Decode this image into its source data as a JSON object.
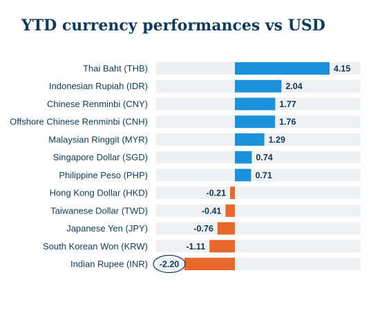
{
  "chart_data": {
    "type": "bar",
    "orientation": "horizontal",
    "title": "YTD currency performances vs USD",
    "xlabel": "",
    "ylabel": "",
    "categories": [
      "Thai Baht (THB)",
      "Indonesian Rupiah (IDR)",
      "Chinese Renminbi (CNY)",
      "Offshore Chinese Renminbi (CNH)",
      "Malaysian Ringgit (MYR)",
      "Singapore Dollar (SGD)",
      "Philippine Peso (PHP)",
      "Hong Kong Dollar (HKD)",
      "Taiwanese Dollar (TWD)",
      "Japanese Yen (JPY)",
      "South Korean Won (KRW)",
      "Indian Rupee (INR)"
    ],
    "values": [
      4.15,
      2.04,
      1.77,
      1.76,
      1.29,
      0.74,
      0.71,
      -0.21,
      -0.41,
      -0.76,
      -1.11,
      -2.2
    ],
    "value_labels": [
      "4.15",
      "2.04",
      "1.77",
      "1.76",
      "1.29",
      "0.74",
      "0.71",
      "-0.21",
      "-0.41",
      "-0.76",
      "-1.11",
      "-2.20"
    ],
    "xlim": [
      -2.2,
      4.15
    ],
    "highlighted_category": "Indian Rupee (INR)",
    "grid": false,
    "colors": {
      "positive": "#1b91dc",
      "negative": "#e8672b",
      "row_background": "#eef0f2",
      "text": "#0d3b5c",
      "highlight_outline": "#0d3b5c"
    }
  }
}
